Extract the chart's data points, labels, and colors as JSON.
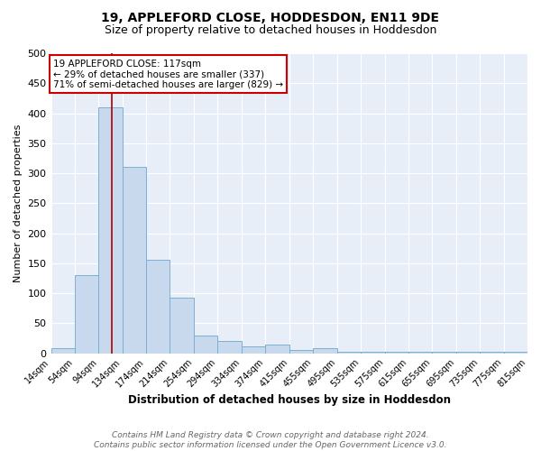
{
  "title": "19, APPLEFORD CLOSE, HODDESDON, EN11 9DE",
  "subtitle": "Size of property relative to detached houses in Hoddesdon",
  "xlabel": "Distribution of detached houses by size in Hoddesdon",
  "ylabel": "Number of detached properties",
  "bin_edges": [
    14,
    54,
    94,
    134,
    174,
    214,
    254,
    294,
    334,
    374,
    415,
    455,
    495,
    535,
    575,
    615,
    655,
    695,
    735,
    775,
    815
  ],
  "bar_heights": [
    8,
    130,
    410,
    310,
    155,
    92,
    30,
    20,
    12,
    15,
    5,
    8,
    2,
    2,
    2,
    2,
    2,
    3,
    2,
    2
  ],
  "bar_color": "#c8d9ed",
  "bar_edge_color": "#7ab0d4",
  "property_value": 117,
  "vline_color": "#aa0000",
  "annotation_text": "19 APPLEFORD CLOSE: 117sqm\n← 29% of detached houses are smaller (337)\n71% of semi-detached houses are larger (829) →",
  "annotation_box_color": "#ffffff",
  "annotation_box_edge_color": "#cc0000",
  "ylim": [
    0,
    500
  ],
  "xlim": [
    14,
    815
  ],
  "background_color": "#e8eef8",
  "footer_text": "Contains HM Land Registry data © Crown copyright and database right 2024.\nContains public sector information licensed under the Open Government Licence v3.0.",
  "title_fontsize": 10,
  "subtitle_fontsize": 9,
  "ylabel_fontsize": 8,
  "xlabel_fontsize": 8.5,
  "footer_fontsize": 6.5,
  "tick_label_fontsize": 7
}
